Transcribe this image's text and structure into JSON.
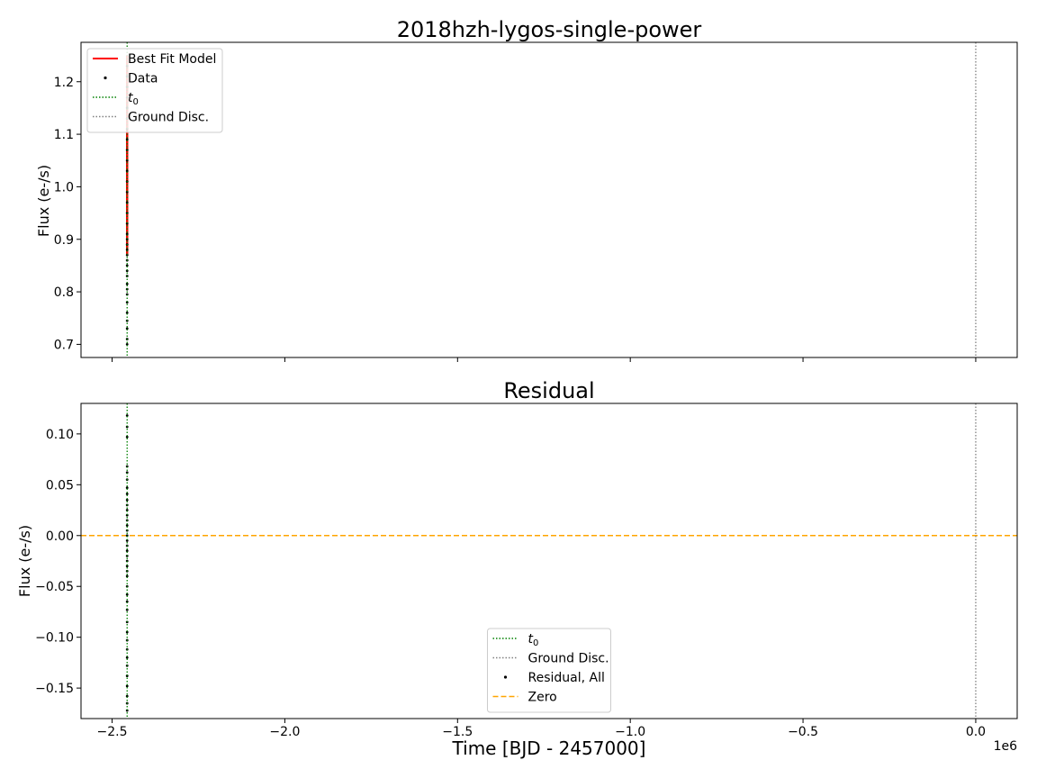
{
  "chart_data": [
    {
      "type": "scatter",
      "title": "2018hzh-lygos-single-power",
      "ylabel": "Flux (e-/s)",
      "xlim": [
        -2590000,
        120000
      ],
      "ylim": [
        0.675,
        1.275
      ],
      "x_ticks": [
        -2500000,
        -2000000,
        -1500000,
        -1000000,
        -500000,
        0
      ],
      "y_ticks": [
        0.7,
        0.8,
        0.9,
        1.0,
        1.1,
        1.2
      ],
      "y_tick_labels": [
        "0.7",
        "0.8",
        "0.9",
        "1.0",
        "1.1",
        "1.2"
      ],
      "t0": -2456500,
      "ground_disc": 0,
      "legend": {
        "location": "upper-left",
        "entries": [
          {
            "label": "Best Fit Model",
            "style": "line",
            "color": "#ff0000"
          },
          {
            "label": "Data",
            "style": "marker",
            "color": "#000000"
          },
          {
            "label": "$t_0$",
            "text": "t",
            "sub": "0",
            "style": "dotted",
            "color": "#008000"
          },
          {
            "label": "Ground Disc.",
            "style": "dotted",
            "color": "#808080"
          }
        ]
      },
      "series": [
        {
          "name": "Best Fit Model",
          "color": "#ff0000",
          "x": [
            -2456500,
            -2456500
          ],
          "y": [
            0.87,
            1.25
          ]
        },
        {
          "name": "Data",
          "color": "#000000",
          "x_value": -2456500,
          "y": [
            0.7,
            0.71,
            0.73,
            0.745,
            0.76,
            0.78,
            0.795,
            0.805,
            0.815,
            0.83,
            0.84,
            0.85,
            0.86,
            0.87,
            0.88,
            0.89,
            0.9,
            0.91,
            0.93,
            0.95,
            0.97,
            0.99,
            1.01,
            1.03,
            1.05,
            1.07,
            1.09,
            1.11,
            1.13,
            1.15,
            1.17,
            1.19,
            1.21,
            1.23
          ]
        }
      ]
    },
    {
      "type": "scatter",
      "title": "Residual",
      "xlabel": "Time [BJD - 2457000]",
      "ylabel": "Flux (e-/s)",
      "x_offset_text": "1e6",
      "xlim": [
        -2590000,
        120000
      ],
      "ylim": [
        -0.18,
        0.13
      ],
      "x_ticks": [
        -2500000,
        -2000000,
        -1500000,
        -1000000,
        -500000,
        0
      ],
      "x_tick_labels": [
        "−2.5",
        "−2.0",
        "−1.5",
        "−1.0",
        "−0.5",
        "0.0"
      ],
      "y_ticks": [
        -0.15,
        -0.1,
        -0.05,
        0.0,
        0.05,
        0.1
      ],
      "y_tick_labels": [
        "−0.15",
        "−0.10",
        "−0.05",
        "0.00",
        "0.05",
        "0.10"
      ],
      "t0": -2456500,
      "ground_disc": 0,
      "zero_line": 0,
      "legend": {
        "location": "lower-center",
        "entries": [
          {
            "label": "$t_0$",
            "text": "t",
            "sub": "0",
            "style": "dotted",
            "color": "#008000"
          },
          {
            "label": "Ground Disc.",
            "style": "dotted",
            "color": "#808080"
          },
          {
            "label": "Residual, All",
            "style": "marker",
            "color": "#000000"
          },
          {
            "label": "Zero",
            "style": "dashed",
            "color": "#ffa500"
          }
        ]
      },
      "series": [
        {
          "name": "Residual, All",
          "color": "#000000",
          "x_value": -2456500,
          "y": [
            0.118,
            0.107,
            0.097,
            0.068,
            0.062,
            0.055,
            0.047,
            0.041,
            0.035,
            0.03,
            0.025,
            0.02,
            0.015,
            0.01,
            0.005,
            0.0,
            -0.005,
            -0.01,
            -0.015,
            -0.02,
            -0.025,
            -0.03,
            -0.035,
            -0.04,
            -0.05,
            -0.058,
            -0.065,
            -0.073,
            -0.085,
            -0.095,
            -0.103,
            -0.112,
            -0.12,
            -0.128,
            -0.138,
            -0.148,
            -0.158,
            -0.165,
            -0.172
          ]
        }
      ]
    }
  ]
}
